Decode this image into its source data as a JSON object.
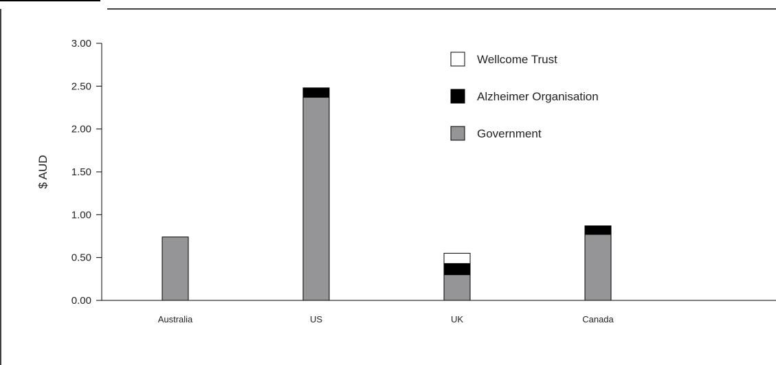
{
  "chart_data": {
    "type": "bar",
    "stacked": true,
    "title": "",
    "xlabel": "",
    "ylabel": "$ AUD",
    "ylim": [
      0,
      3.0
    ],
    "yticks": [
      "0.00",
      "0.50",
      "1.00",
      "1.50",
      "2.00",
      "2.50",
      "3.00"
    ],
    "categories": [
      "Australia",
      "US",
      "UK",
      "Canada"
    ],
    "series": [
      {
        "name": "Government",
        "color": "#959598",
        "values": [
          0.74,
          2.37,
          0.3,
          0.77
        ]
      },
      {
        "name": "Alzheimer Organisation",
        "color": "#000000",
        "values": [
          0.0,
          0.11,
          0.13,
          0.1
        ]
      },
      {
        "name": "Wellcome Trust",
        "color": "#ffffff",
        "values": [
          0.0,
          0.0,
          0.12,
          0.0
        ]
      }
    ],
    "legend_order": [
      "Wellcome Trust",
      "Alzheimer Organisation",
      "Government"
    ],
    "legend_position": "top-right",
    "grid": false
  }
}
